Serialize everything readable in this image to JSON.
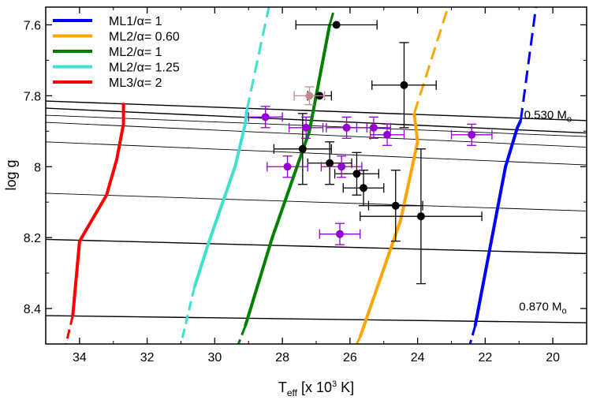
{
  "chart_data": {
    "type": "scatter",
    "title": "",
    "xlabel": {
      "base": "T",
      "sub": "eff",
      "rest": " [x 10",
      "sup": "3",
      "end": " K]"
    },
    "ylabel": "log g",
    "xlim": [
      35,
      19
    ],
    "ylim": [
      8.5,
      7.55
    ],
    "x_inverted": true,
    "y_inverted": true,
    "x_ticks": [
      34,
      32,
      30,
      28,
      26,
      24,
      22,
      20
    ],
    "y_ticks": [
      7.6,
      7.8,
      8.0,
      8.2,
      8.4
    ],
    "y_tick_labels": [
      "7.6",
      "7.8",
      "8",
      "8.2",
      "8.4"
    ],
    "legend": {
      "placement": "top-left",
      "entries": [
        {
          "label": "ML1/α= 1",
          "color": "#0000ff"
        },
        {
          "label": "ML2/α= 0.60",
          "color": "#ffa500"
        },
        {
          "label": "ML2/α= 1",
          "color": "#008000"
        },
        {
          "label": "ML2/α= 1.25",
          "color": "#40e0d0"
        },
        {
          "label": "ML3/α= 2",
          "color": "#ff0000"
        }
      ]
    },
    "strips": [
      {
        "name": "ML1/α= 1",
        "color": "#0000ff",
        "solid": [
          [
            20.95,
            7.87
          ],
          [
            21.05,
            7.89
          ],
          [
            21.4,
            8.0
          ],
          [
            22.3,
            8.45
          ]
        ],
        "dashed": [
          [
            20.95,
            7.87
          ],
          [
            20.5,
            7.55
          ]
        ],
        "dashed_low": [
          [
            22.3,
            8.45
          ],
          [
            22.45,
            8.5
          ]
        ]
      },
      {
        "name": "ML2/α= 0.60",
        "color": "#ffa500",
        "solid": [
          [
            24.1,
            7.85
          ],
          [
            24.0,
            7.93
          ],
          [
            24.5,
            8.15
          ],
          [
            25.7,
            8.48
          ]
        ],
        "dashed": [
          [
            24.1,
            7.85
          ],
          [
            23.1,
            7.55
          ]
        ],
        "dashed_low": [
          [
            25.7,
            8.48
          ],
          [
            25.8,
            8.5
          ]
        ]
      },
      {
        "name": "ML2/α= 1",
        "color": "#008000",
        "solid": [
          [
            26.6,
            7.6
          ],
          [
            27.2,
            7.9
          ],
          [
            28.3,
            8.2
          ],
          [
            29.1,
            8.45
          ]
        ],
        "dashed": [
          [
            26.6,
            7.6
          ],
          [
            26.45,
            7.55
          ]
        ],
        "dashed_low": [
          [
            29.1,
            8.45
          ],
          [
            29.3,
            8.5
          ]
        ]
      },
      {
        "name": "ML2/α= 1.25",
        "color": "#40e0d0",
        "solid": [
          [
            29.05,
            7.84
          ],
          [
            29.1,
            7.88
          ],
          [
            29.4,
            8.0
          ],
          [
            30.2,
            8.22
          ],
          [
            30.6,
            8.34
          ]
        ],
        "dashed": [
          [
            29.05,
            7.84
          ],
          [
            28.4,
            7.55
          ]
        ],
        "dashed_low": [
          [
            30.6,
            8.34
          ],
          [
            31.0,
            8.5
          ]
        ]
      },
      {
        "name": "ML3/α= 2",
        "color": "#ff0000",
        "solid": [
          [
            32.7,
            7.82
          ],
          [
            32.7,
            7.88
          ],
          [
            32.9,
            7.98
          ],
          [
            33.2,
            8.08
          ],
          [
            34.0,
            8.21
          ],
          [
            34.2,
            8.42
          ]
        ],
        "dashed": [],
        "dashed_low": [
          [
            34.2,
            8.42
          ],
          [
            34.4,
            8.5
          ]
        ]
      }
    ],
    "mass_tracks": [
      {
        "x": [
          35,
          19
        ],
        "y": [
          7.815,
          7.87
        ],
        "width": 1.4
      },
      {
        "x": [
          35,
          19
        ],
        "y": [
          7.835,
          7.905
        ],
        "width": 1.4
      },
      {
        "x": [
          35,
          19
        ],
        "y": [
          7.855,
          7.915
        ],
        "width": 0.9
      },
      {
        "x": [
          35,
          19
        ],
        "y": [
          7.875,
          7.945
        ],
        "width": 0.9
      },
      {
        "x": [
          35,
          19
        ],
        "y": [
          7.93,
          7.995
        ],
        "width": 0.9
      },
      {
        "x": [
          35,
          19
        ],
        "y": [
          8.075,
          8.125
        ],
        "width": 0.9
      },
      {
        "x": [
          35,
          19
        ],
        "y": [
          8.205,
          8.245
        ],
        "width": 1.4
      },
      {
        "x": [
          35,
          19
        ],
        "y": [
          8.42,
          8.44
        ],
        "width": 1.4
      }
    ],
    "annotations": [
      {
        "text": "0.530 M",
        "sub": "o",
        "x": 20.85,
        "y": 7.865
      },
      {
        "text": "0.870 M",
        "sub": "o",
        "x": 21.0,
        "y": 8.405
      }
    ],
    "series": [
      {
        "name": "",
        "color": "#000000",
        "points": [
          {
            "x": 26.4,
            "y": 7.6,
            "xerr": 1.2,
            "yerr": 0.0
          },
          {
            "x": 24.4,
            "y": 7.77,
            "xerr": 0.95,
            "yerr": 0.12
          },
          {
            "x": 26.9,
            "y": 7.8,
            "xerr": 0.35,
            "yerr": 0.0
          },
          {
            "x": 27.4,
            "y": 7.95,
            "xerr": 0.85,
            "yerr": 0.1
          },
          {
            "x": 26.6,
            "y": 7.99,
            "xerr": 0.65,
            "yerr": 0.06
          },
          {
            "x": 25.8,
            "y": 8.02,
            "xerr": 0.65,
            "yerr": 0.06
          },
          {
            "x": 25.6,
            "y": 8.06,
            "xerr": 0.6,
            "yerr": 0.05
          },
          {
            "x": 24.65,
            "y": 8.11,
            "xerr": 0.8,
            "yerr": 0.1
          },
          {
            "x": 23.9,
            "y": 8.14,
            "xerr": 1.8,
            "yerr": 0.19
          }
        ]
      },
      {
        "name": "",
        "color": "#9400d3",
        "points": [
          {
            "x": 28.5,
            "y": 7.86,
            "xerr": 0.5,
            "yerr": 0.03
          },
          {
            "x": 27.3,
            "y": 7.89,
            "xerr": 0.5,
            "yerr": 0.03
          },
          {
            "x": 26.1,
            "y": 7.89,
            "xerr": 0.6,
            "yerr": 0.03
          },
          {
            "x": 25.3,
            "y": 7.89,
            "xerr": 0.5,
            "yerr": 0.03
          },
          {
            "x": 24.9,
            "y": 7.91,
            "xerr": 0.5,
            "yerr": 0.03
          },
          {
            "x": 22.4,
            "y": 7.91,
            "xerr": 0.6,
            "yerr": 0.03
          },
          {
            "x": 27.85,
            "y": 8.0,
            "xerr": 0.6,
            "yerr": 0.03
          },
          {
            "x": 26.25,
            "y": 8.0,
            "xerr": 0.6,
            "yerr": 0.03
          },
          {
            "x": 26.3,
            "y": 8.19,
            "xerr": 0.6,
            "yerr": 0.03
          }
        ]
      },
      {
        "name": "",
        "color": "#bc8f8f",
        "points": [
          {
            "x": 27.2,
            "y": 7.8,
            "xerr": 0.45,
            "yerr": 0.025
          }
        ]
      }
    ]
  }
}
